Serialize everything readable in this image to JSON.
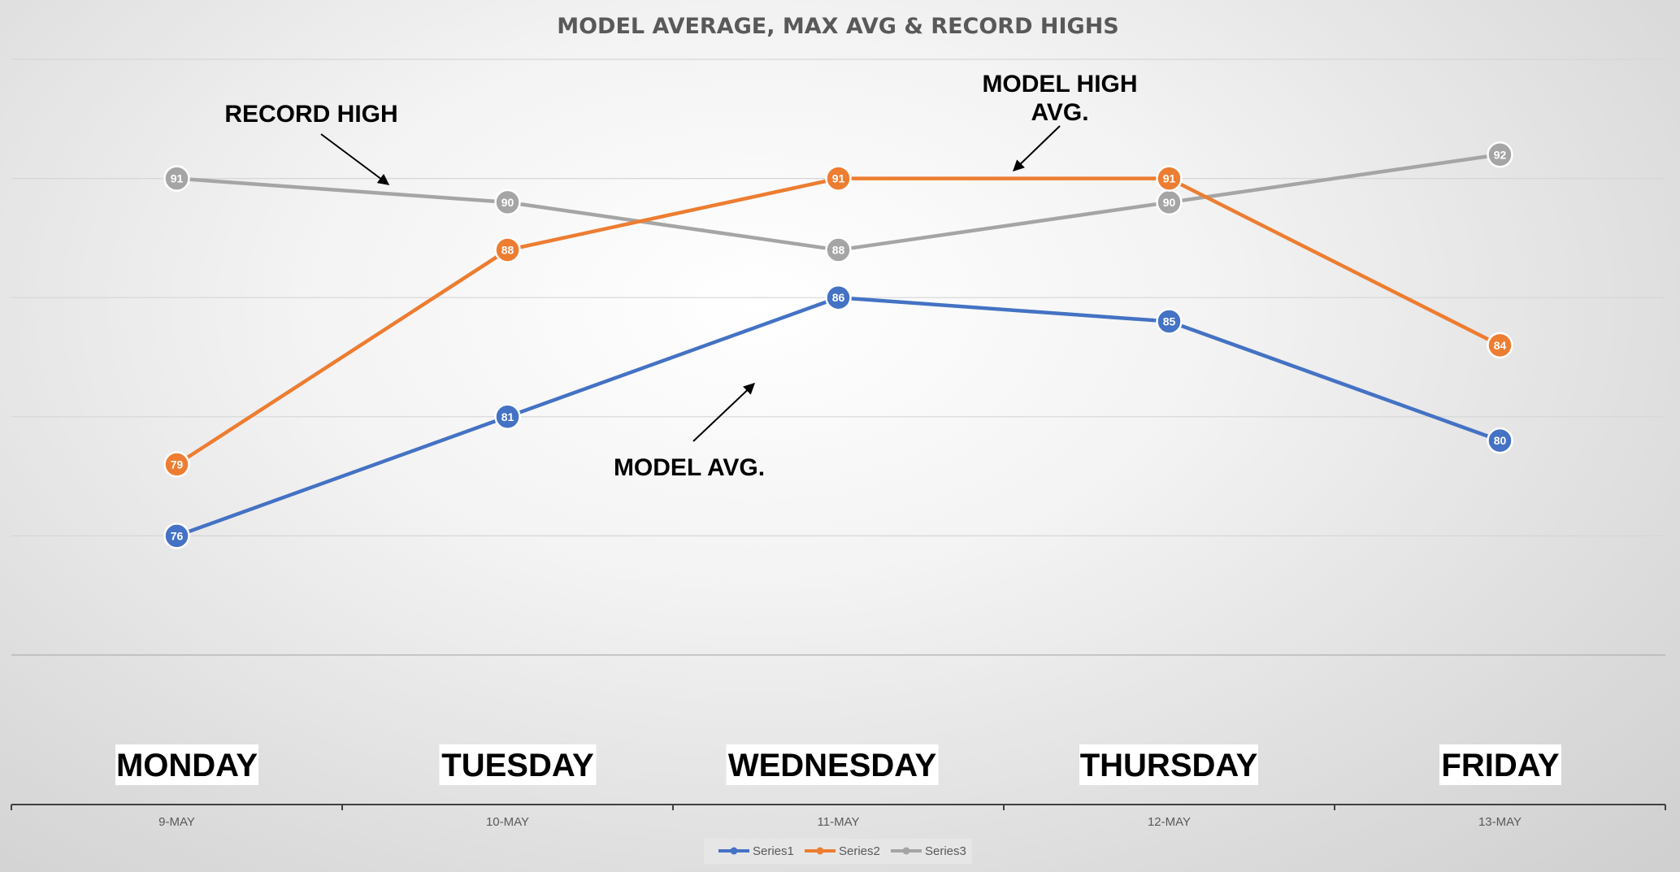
{
  "chart_data": {
    "type": "line",
    "title": "MODEL AVERAGE, MAX AVG & RECORD HIGHS",
    "categories": [
      "9-MAY",
      "10-MAY",
      "11-MAY",
      "12-MAY",
      "13-MAY"
    ],
    "day_labels": [
      "MONDAY",
      "TUESDAY",
      "WEDNESDAY",
      "THURSDAY",
      "FRIDAY"
    ],
    "series": [
      {
        "name": "Series1",
        "color": "#4472C4",
        "values": [
          76,
          81,
          86,
          85,
          80
        ]
      },
      {
        "name": "Series2",
        "color": "#ED7D31",
        "values": [
          79,
          88,
          91,
          91,
          84
        ]
      },
      {
        "name": "Series3",
        "color": "#A5A5A5",
        "values": [
          91,
          90,
          88,
          90,
          92
        ]
      }
    ],
    "ylim": [
      71,
      96
    ],
    "grid": true,
    "legend_position": "bottom",
    "annotations": {
      "record_high": "RECORD HIGH",
      "model_high_line1": "MODEL HIGH",
      "model_high_line2": "AVG.",
      "model_avg": "MODEL AVG."
    }
  }
}
